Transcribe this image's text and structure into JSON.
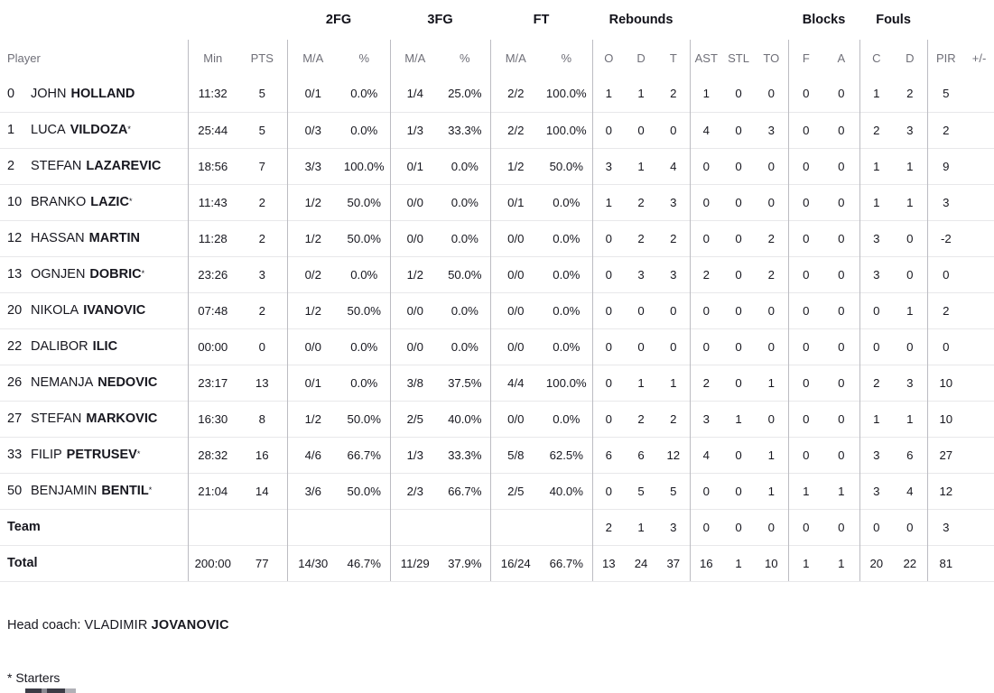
{
  "theme": {
    "text": "#17171f",
    "muted": "#6f6f78",
    "line_strong": "#bcbcc2",
    "line_light": "#e8e8ea"
  },
  "table": {
    "groups": [
      "2FG",
      "3FG",
      "FT",
      "Rebounds",
      "Blocks",
      "Fouls"
    ],
    "sub_headers": [
      "Player",
      "Min",
      "PTS",
      "M/A",
      "%",
      "M/A",
      "%",
      "M/A",
      "%",
      "O",
      "D",
      "T",
      "AST",
      "STL",
      "TO",
      "F",
      "A",
      "C",
      "D",
      "PIR",
      "+/-"
    ],
    "players": [
      {
        "num": "0",
        "first": "JOHN",
        "last": "HOLLAND",
        "starter": false,
        "stats": [
          "11:32",
          "5",
          "0/1",
          "0.0%",
          "1/4",
          "25.0%",
          "2/2",
          "100.0%",
          "1",
          "1",
          "2",
          "1",
          "0",
          "0",
          "0",
          "0",
          "1",
          "2",
          "5",
          ""
        ]
      },
      {
        "num": "1",
        "first": "LUCA",
        "last": "VILDOZA",
        "starter": true,
        "stats": [
          "25:44",
          "5",
          "0/3",
          "0.0%",
          "1/3",
          "33.3%",
          "2/2",
          "100.0%",
          "0",
          "0",
          "0",
          "4",
          "0",
          "3",
          "0",
          "0",
          "2",
          "3",
          "2",
          ""
        ]
      },
      {
        "num": "2",
        "first": "STEFAN",
        "last": "LAZAREVIC",
        "starter": false,
        "stats": [
          "18:56",
          "7",
          "3/3",
          "100.0%",
          "0/1",
          "0.0%",
          "1/2",
          "50.0%",
          "3",
          "1",
          "4",
          "0",
          "0",
          "0",
          "0",
          "0",
          "1",
          "1",
          "9",
          ""
        ]
      },
      {
        "num": "10",
        "first": "BRANKO",
        "last": "LAZIC",
        "starter": true,
        "stats": [
          "11:43",
          "2",
          "1/2",
          "50.0%",
          "0/0",
          "0.0%",
          "0/1",
          "0.0%",
          "1",
          "2",
          "3",
          "0",
          "0",
          "0",
          "0",
          "0",
          "1",
          "1",
          "3",
          ""
        ]
      },
      {
        "num": "12",
        "first": "HASSAN",
        "last": "MARTIN",
        "starter": false,
        "stats": [
          "11:28",
          "2",
          "1/2",
          "50.0%",
          "0/0",
          "0.0%",
          "0/0",
          "0.0%",
          "0",
          "2",
          "2",
          "0",
          "0",
          "2",
          "0",
          "0",
          "3",
          "0",
          "-2",
          ""
        ]
      },
      {
        "num": "13",
        "first": "OGNJEN",
        "last": "DOBRIC",
        "starter": true,
        "stats": [
          "23:26",
          "3",
          "0/2",
          "0.0%",
          "1/2",
          "50.0%",
          "0/0",
          "0.0%",
          "0",
          "3",
          "3",
          "2",
          "0",
          "2",
          "0",
          "0",
          "3",
          "0",
          "0",
          ""
        ]
      },
      {
        "num": "20",
        "first": "NIKOLA",
        "last": "IVANOVIC",
        "starter": false,
        "stats": [
          "07:48",
          "2",
          "1/2",
          "50.0%",
          "0/0",
          "0.0%",
          "0/0",
          "0.0%",
          "0",
          "0",
          "0",
          "0",
          "0",
          "0",
          "0",
          "0",
          "0",
          "1",
          "2",
          ""
        ]
      },
      {
        "num": "22",
        "first": "DALIBOR",
        "last": "ILIC",
        "starter": false,
        "stats": [
          "00:00",
          "0",
          "0/0",
          "0.0%",
          "0/0",
          "0.0%",
          "0/0",
          "0.0%",
          "0",
          "0",
          "0",
          "0",
          "0",
          "0",
          "0",
          "0",
          "0",
          "0",
          "0",
          ""
        ]
      },
      {
        "num": "26",
        "first": "NEMANJA",
        "last": "NEDOVIC",
        "starter": false,
        "stats": [
          "23:17",
          "13",
          "0/1",
          "0.0%",
          "3/8",
          "37.5%",
          "4/4",
          "100.0%",
          "0",
          "1",
          "1",
          "2",
          "0",
          "1",
          "0",
          "0",
          "2",
          "3",
          "10",
          ""
        ]
      },
      {
        "num": "27",
        "first": "STEFAN",
        "last": "MARKOVIC",
        "starter": false,
        "stats": [
          "16:30",
          "8",
          "1/2",
          "50.0%",
          "2/5",
          "40.0%",
          "0/0",
          "0.0%",
          "0",
          "2",
          "2",
          "3",
          "1",
          "0",
          "0",
          "0",
          "1",
          "1",
          "10",
          ""
        ]
      },
      {
        "num": "33",
        "first": "FILIP",
        "last": "PETRUSEV",
        "starter": true,
        "stats": [
          "28:32",
          "16",
          "4/6",
          "66.7%",
          "1/3",
          "33.3%",
          "5/8",
          "62.5%",
          "6",
          "6",
          "12",
          "4",
          "0",
          "1",
          "0",
          "0",
          "3",
          "6",
          "27",
          ""
        ]
      },
      {
        "num": "50",
        "first": "BENJAMIN",
        "last": "BENTIL",
        "starter": true,
        "stats": [
          "21:04",
          "14",
          "3/6",
          "50.0%",
          "2/3",
          "66.7%",
          "2/5",
          "40.0%",
          "0",
          "5",
          "5",
          "0",
          "0",
          "1",
          "1",
          "1",
          "3",
          "4",
          "12",
          ""
        ]
      }
    ],
    "team_row": {
      "label": "Team",
      "stats": [
        "",
        "",
        "",
        "",
        "",
        "",
        "",
        "",
        "2",
        "1",
        "3",
        "0",
        "0",
        "0",
        "0",
        "0",
        "0",
        "0",
        "3",
        ""
      ]
    },
    "total_row": {
      "label": "Total",
      "stats": [
        "200:00",
        "77",
        "14/30",
        "46.7%",
        "11/29",
        "37.9%",
        "16/24",
        "66.7%",
        "13",
        "24",
        "37",
        "16",
        "1",
        "10",
        "1",
        "1",
        "20",
        "22",
        "81",
        ""
      ]
    }
  },
  "footer": {
    "head_coach_label": "Head coach:",
    "head_coach_first": "VLADIMIR",
    "head_coach_last": "JOVANOVIC",
    "starters_note": "* Starters"
  }
}
